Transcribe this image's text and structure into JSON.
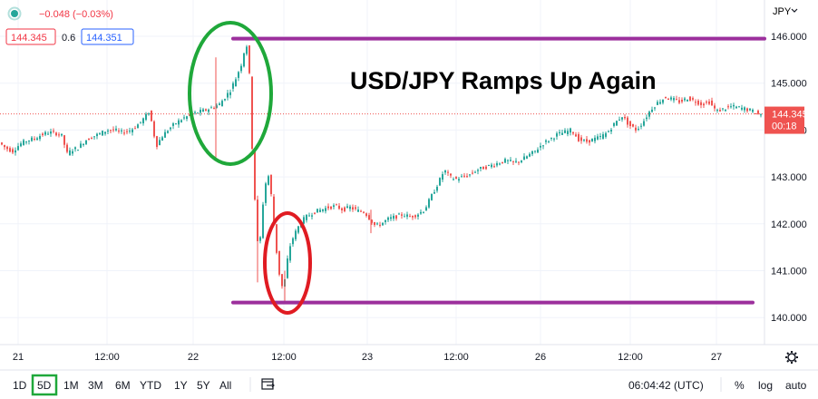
{
  "header": {
    "change_text": "−0.048 (−0.03%)",
    "bid": "144.345",
    "spread": "0.6",
    "ask": "144.351",
    "currency": "JPY"
  },
  "chart_data": {
    "type": "candlestick",
    "title": "USD/JPY Ramps Up Again",
    "y_ticks": [
      "146.000",
      "145.000",
      "144.000",
      "143.000",
      "142.000",
      "141.000",
      "140.000"
    ],
    "ylim": [
      139.7,
      146.6
    ],
    "x_ticks": [
      "21",
      "12:00",
      "22",
      "12:00",
      "23",
      "12:00",
      "26",
      "12:00",
      "27"
    ],
    "last_price": "144.345",
    "countdown": "00:18",
    "price_path": [
      [
        0,
        143.75
      ],
      [
        8,
        143.62
      ],
      [
        16,
        143.55
      ],
      [
        24,
        143.7
      ],
      [
        32,
        143.78
      ],
      [
        40,
        143.82
      ],
      [
        48,
        143.9
      ],
      [
        56,
        143.95
      ],
      [
        64,
        143.93
      ],
      [
        70,
        143.88
      ],
      [
        76,
        143.5
      ],
      [
        82,
        143.58
      ],
      [
        88,
        143.62
      ],
      [
        96,
        143.78
      ],
      [
        104,
        143.86
      ],
      [
        112,
        143.92
      ],
      [
        120,
        144.0
      ],
      [
        128,
        144.0
      ],
      [
        136,
        143.95
      ],
      [
        144,
        143.98
      ],
      [
        150,
        144.05
      ],
      [
        156,
        144.15
      ],
      [
        162,
        144.28
      ],
      [
        166,
        144.38
      ],
      [
        170,
        144.12
      ],
      [
        174,
        143.65
      ],
      [
        180,
        143.85
      ],
      [
        188,
        144.02
      ],
      [
        196,
        144.15
      ],
      [
        204,
        144.25
      ],
      [
        212,
        144.32
      ],
      [
        220,
        144.38
      ],
      [
        228,
        144.42
      ],
      [
        236,
        144.48
      ],
      [
        244,
        144.55
      ],
      [
        250,
        144.7
      ],
      [
        256,
        144.85
      ],
      [
        262,
        145.1
      ],
      [
        268,
        145.4
      ],
      [
        272,
        145.75
      ],
      [
        276,
        145.85
      ],
      [
        278,
        144.5
      ],
      [
        281,
        143.2
      ],
      [
        284,
        142.2
      ],
      [
        287,
        141.3
      ],
      [
        290,
        141.9
      ],
      [
        293,
        142.7
      ],
      [
        296,
        142.95
      ],
      [
        299,
        143.05
      ],
      [
        302,
        142.4
      ],
      [
        305,
        141.8
      ],
      [
        308,
        141.2
      ],
      [
        311,
        140.8
      ],
      [
        314,
        140.6
      ],
      [
        317,
        140.9
      ],
      [
        320,
        141.4
      ],
      [
        323,
        141.6
      ],
      [
        326,
        141.75
      ],
      [
        330,
        141.9
      ],
      [
        334,
        142.05
      ],
      [
        340,
        142.15
      ],
      [
        348,
        142.25
      ],
      [
        356,
        142.3
      ],
      [
        364,
        142.35
      ],
      [
        372,
        142.38
      ],
      [
        380,
        142.3
      ],
      [
        388,
        142.35
      ],
      [
        396,
        142.28
      ],
      [
        404,
        142.25
      ],
      [
        410,
        142.1
      ],
      [
        416,
        141.95
      ],
      [
        422,
        142.0
      ],
      [
        430,
        142.1
      ],
      [
        438,
        142.15
      ],
      [
        446,
        142.2
      ],
      [
        454,
        142.15
      ],
      [
        462,
        142.2
      ],
      [
        470,
        142.3
      ],
      [
        478,
        142.6
      ],
      [
        486,
        142.9
      ],
      [
        492,
        143.15
      ],
      [
        498,
        143.0
      ],
      [
        504,
        142.95
      ],
      [
        512,
        143.0
      ],
      [
        520,
        143.05
      ],
      [
        528,
        143.15
      ],
      [
        536,
        143.2
      ],
      [
        544,
        143.25
      ],
      [
        552,
        143.3
      ],
      [
        560,
        143.35
      ],
      [
        568,
        143.3
      ],
      [
        576,
        143.35
      ],
      [
        584,
        143.45
      ],
      [
        592,
        143.55
      ],
      [
        600,
        143.7
      ],
      [
        608,
        143.8
      ],
      [
        616,
        143.9
      ],
      [
        624,
        143.95
      ],
      [
        632,
        144.0
      ],
      [
        640,
        143.8
      ],
      [
        648,
        143.75
      ],
      [
        656,
        143.8
      ],
      [
        664,
        143.85
      ],
      [
        672,
        143.95
      ],
      [
        680,
        144.15
      ],
      [
        688,
        144.3
      ],
      [
        696,
        144.1
      ],
      [
        704,
        144.0
      ],
      [
        712,
        144.2
      ],
      [
        720,
        144.45
      ],
      [
        728,
        144.6
      ],
      [
        736,
        144.7
      ],
      [
        744,
        144.65
      ],
      [
        752,
        144.6
      ],
      [
        760,
        144.68
      ],
      [
        768,
        144.62
      ],
      [
        776,
        144.55
      ],
      [
        784,
        144.6
      ],
      [
        792,
        144.4
      ],
      [
        800,
        144.45
      ],
      [
        808,
        144.5
      ],
      [
        816,
        144.48
      ],
      [
        824,
        144.45
      ],
      [
        832,
        144.4
      ],
      [
        838,
        144.34
      ]
    ]
  },
  "annotations": {
    "upper_line_level": 145.95,
    "lower_line_level": 140.32
  },
  "toolbar": {
    "ranges": [
      "1D",
      "5D",
      "1M",
      "3M",
      "6M",
      "YTD",
      "1Y",
      "5Y",
      "All"
    ],
    "selected_range": "5D",
    "clock": "06:04:42 (UTC)",
    "percent_label": "%",
    "log_label": "log",
    "auto_label": "auto"
  },
  "colors": {
    "up": "#26a69a",
    "down": "#ef5350",
    "purple_line": "#9c2f9c",
    "green_circle": "#1fa83a",
    "red_circle": "#e01b22",
    "price_tag": "#ef5350"
  }
}
